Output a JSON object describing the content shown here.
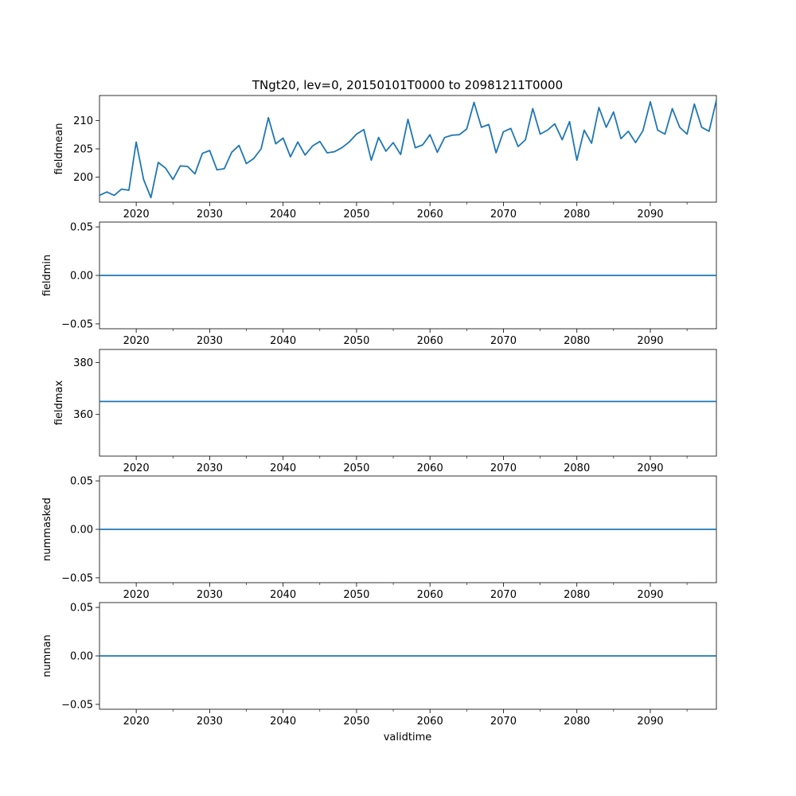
{
  "chart_data": {
    "title": "TNgt20, lev=0, 20150101T0000 to 20981211T0000",
    "xlabel": "validtime",
    "xlim": [
      2015,
      2099
    ],
    "x_major_ticks": [
      2020,
      2030,
      2040,
      2050,
      2060,
      2070,
      2080,
      2090
    ],
    "x_minor_ticks": [
      2025,
      2035,
      2045,
      2055,
      2065,
      2075,
      2085,
      2095
    ],
    "line_color": "#1f77b4",
    "panels": [
      {
        "type": "line",
        "ylabel": "fieldmean",
        "ylim": [
          195.6,
          214.4
        ],
        "yticks": [
          200,
          205,
          210
        ],
        "ytick_labels": [
          "200",
          "205",
          "210"
        ],
        "x": [
          2015,
          2016,
          2017,
          2018,
          2019,
          2020,
          2021,
          2022,
          2023,
          2024,
          2025,
          2026,
          2027,
          2028,
          2029,
          2030,
          2031,
          2032,
          2033,
          2034,
          2035,
          2036,
          2037,
          2038,
          2039,
          2040,
          2041,
          2042,
          2043,
          2044,
          2045,
          2046,
          2047,
          2048,
          2049,
          2050,
          2051,
          2052,
          2053,
          2054,
          2055,
          2056,
          2057,
          2058,
          2059,
          2060,
          2061,
          2062,
          2063,
          2064,
          2065,
          2066,
          2067,
          2068,
          2069,
          2070,
          2071,
          2072,
          2073,
          2074,
          2075,
          2076,
          2077,
          2078,
          2079,
          2080,
          2081,
          2082,
          2083,
          2084,
          2085,
          2086,
          2087,
          2088,
          2089,
          2090,
          2091,
          2092,
          2093,
          2094,
          2095,
          2096,
          2097,
          2098,
          2099
        ],
        "y": [
          196.8,
          197.4,
          196.8,
          197.9,
          197.7,
          206.2,
          199.6,
          196.4,
          202.6,
          201.6,
          199.6,
          202.0,
          201.9,
          200.6,
          204.2,
          204.7,
          201.3,
          201.5,
          204.4,
          205.6,
          202.4,
          203.3,
          205.0,
          210.5,
          205.9,
          206.9,
          203.6,
          206.2,
          203.9,
          205.5,
          206.3,
          204.3,
          204.5,
          205.2,
          206.2,
          207.6,
          208.4,
          203.0,
          207.0,
          204.6,
          206.1,
          204.0,
          210.2,
          205.2,
          205.7,
          207.5,
          204.4,
          207.0,
          207.4,
          207.5,
          208.5,
          213.2,
          208.8,
          209.3,
          204.3,
          208.0,
          208.6,
          205.4,
          206.6,
          212.1,
          207.6,
          208.3,
          209.4,
          206.6,
          209.8,
          203.0,
          208.3,
          206.0,
          212.3,
          208.8,
          211.5,
          206.8,
          208.1,
          206.1,
          208.2,
          213.3,
          208.3,
          207.6,
          212.1,
          208.8,
          207.6,
          212.9,
          208.8,
          208.1,
          213.6
        ]
      },
      {
        "type": "line",
        "ylabel": "fieldmin",
        "ylim": [
          -0.055,
          0.055
        ],
        "yticks": [
          -0.05,
          0.0,
          0.05
        ],
        "ytick_labels": [
          "−0.05",
          "0.00",
          "0.05"
        ],
        "constant": 0.0
      },
      {
        "type": "line",
        "ylabel": "fieldmax",
        "ylim": [
          344.0,
          385.0
        ],
        "yticks": [
          360,
          380
        ],
        "ytick_labels": [
          "360",
          "380"
        ],
        "constant": 365.0
      },
      {
        "type": "line",
        "ylabel": "nummasked",
        "ylim": [
          -0.055,
          0.055
        ],
        "yticks": [
          -0.05,
          0.0,
          0.05
        ],
        "ytick_labels": [
          "−0.05",
          "0.00",
          "0.05"
        ],
        "constant": 0.0
      },
      {
        "type": "line",
        "ylabel": "numnan",
        "ylim": [
          -0.055,
          0.055
        ],
        "yticks": [
          -0.05,
          0.0,
          0.05
        ],
        "ytick_labels": [
          "−0.05",
          "0.00",
          "0.05"
        ],
        "constant": 0.0
      }
    ]
  }
}
